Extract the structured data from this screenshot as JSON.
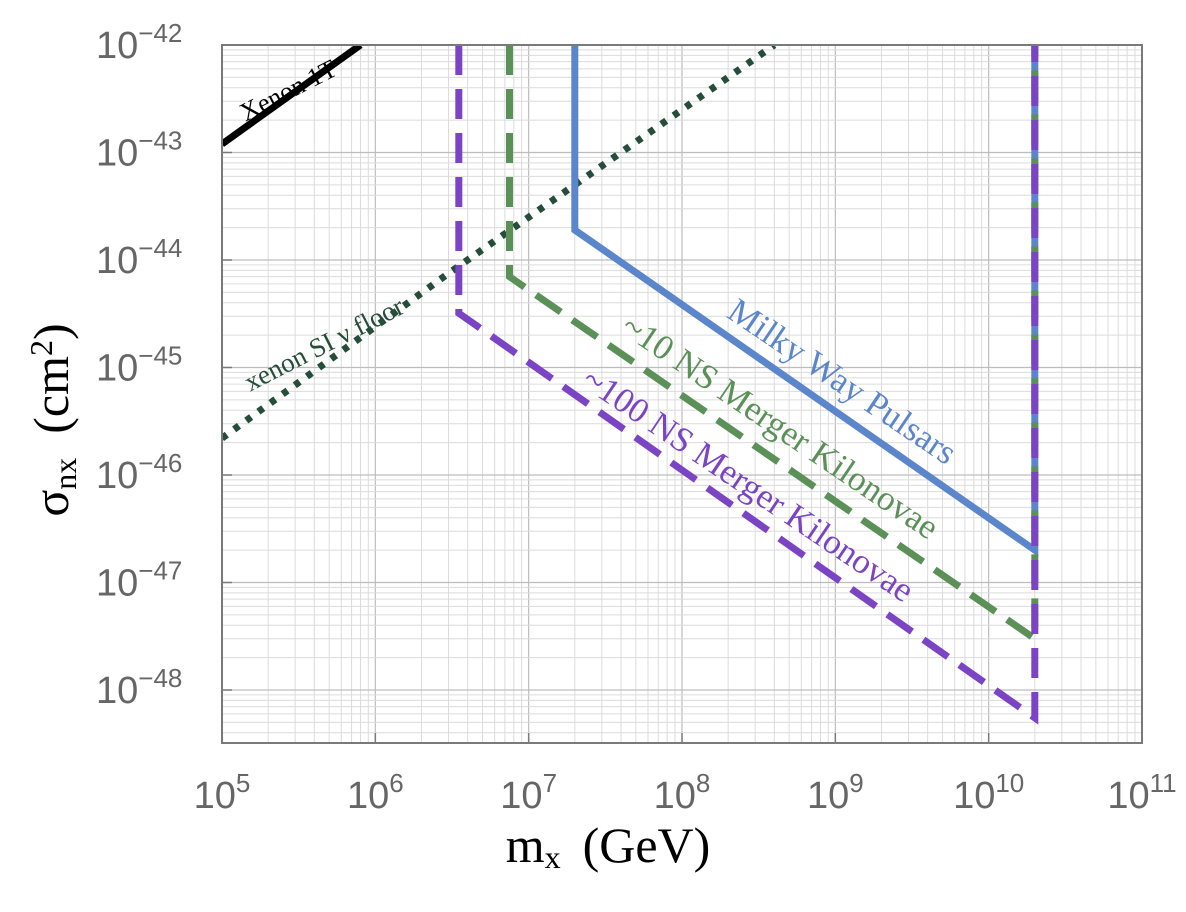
{
  "chart_data": {
    "type": "line",
    "xscale": "log",
    "yscale": "log",
    "xlim": [
      100000,
      100000000000
    ],
    "ylim": [
      5e-49,
      1e-42
    ],
    "grid": true,
    "x_ticks": [
      {
        "base": "10",
        "exp": "5",
        "value": 100000
      },
      {
        "base": "10",
        "exp": "6",
        "value": 1000000
      },
      {
        "base": "10",
        "exp": "7",
        "value": 10000000
      },
      {
        "base": "10",
        "exp": "8",
        "value": 100000000
      },
      {
        "base": "10",
        "exp": "9",
        "value": 1000000000
      },
      {
        "base": "10",
        "exp": "10",
        "value": 10000000000
      },
      {
        "base": "10",
        "exp": "11",
        "value": 100000000000
      }
    ],
    "y_ticks": [
      {
        "base": "10",
        "exp": "−42",
        "value": 1e-42
      },
      {
        "base": "10",
        "exp": "−43",
        "value": 1e-43
      },
      {
        "base": "10",
        "exp": "−44",
        "value": 1e-44
      },
      {
        "base": "10",
        "exp": "−45",
        "value": 1e-45
      },
      {
        "base": "10",
        "exp": "−46",
        "value": 1e-46
      },
      {
        "base": "10",
        "exp": "−47",
        "value": 1e-47
      },
      {
        "base": "10",
        "exp": "−48",
        "value": 1e-48
      }
    ],
    "xlabel": {
      "main": "m",
      "sub": "x",
      "unit": "(GeV)"
    },
    "ylabel": {
      "main": "σ",
      "sub": "nx",
      "unit": "(cm",
      "unit_sup": "2",
      "unit_end": ")"
    },
    "series": [
      {
        "name": "Xenon 1T",
        "color": "#000000",
        "dash": "solid",
        "x": [
          100000,
          800000
        ],
        "y": [
          1.2e-43,
          1e-42
        ]
      },
      {
        "name": "xenon SI ν floor",
        "color": "#264d3a",
        "dash": "dotted",
        "x": [
          100000,
          3000000,
          400000000
        ],
        "y": [
          2.2e-46,
          7.5e-45,
          1e-42
        ]
      },
      {
        "name": "Milky Way Pulsars",
        "color": "#5b86cc",
        "dash": "solid",
        "x": [
          20000000,
          20000000,
          20000000000,
          20000000000
        ],
        "y": [
          1e-42,
          1.9e-44,
          2e-47,
          1e-42
        ]
      },
      {
        "name": "~10 NS Merger Kilonovae",
        "color": "#5b9158",
        "dash": "dashed",
        "x": [
          7500000,
          7500000,
          20000000000,
          20000000000
        ],
        "y": [
          1e-42,
          7e-45,
          3e-48,
          1e-42
        ]
      },
      {
        "name": "~100 NS Merger Kilonovae",
        "color": "#7a44c4",
        "dash": "dashed",
        "x": [
          3500000,
          3500000,
          20000000000,
          20000000000
        ],
        "y": [
          1e-42,
          3.2e-45,
          5.5e-49,
          1e-42
        ]
      }
    ],
    "annotations": [
      {
        "text": "Xenon 1T",
        "color": "#000000"
      },
      {
        "text": "xenon SI ν floor",
        "color": "#264d3a"
      },
      {
        "text": "Milky Way Pulsars",
        "color": "#5b86cc"
      },
      {
        "text": "~10 NS Merger Kilonovae",
        "color": "#5b9158"
      },
      {
        "text": "~100 NS Merger Kilonovae",
        "color": "#7a44c4"
      }
    ]
  }
}
